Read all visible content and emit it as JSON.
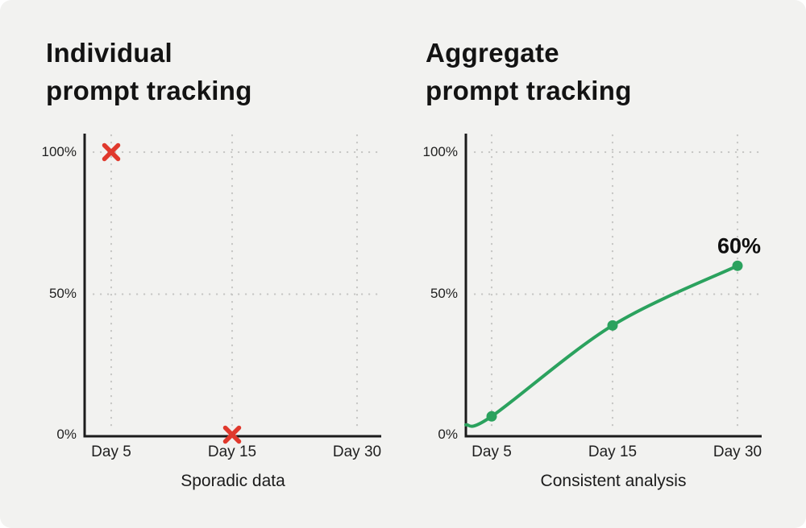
{
  "colors": {
    "background": "#f2f2f0",
    "axis": "#1b1b1b",
    "grid": "#c6c6c4",
    "red_marker": "#e0392d",
    "green_line": "#2ba25e",
    "text": "#161616"
  },
  "chart_data": [
    {
      "type": "scatter",
      "title": "Individual prompt tracking",
      "title_lines": [
        "Individual",
        "prompt tracking"
      ],
      "caption": "Sporadic data",
      "x_ticks": [
        "Day 5",
        "Day 15",
        "Day 30"
      ],
      "y_ticks": [
        "0%",
        "50%",
        "100%"
      ],
      "ylim": [
        0,
        100
      ],
      "grid": true,
      "marker": "x",
      "marker_color": "#e0392d",
      "points": [
        {
          "x": "Day 5",
          "y": 100
        },
        {
          "x": "Day 15",
          "y": 0
        }
      ]
    },
    {
      "type": "line",
      "title": "Aggregate prompt tracking",
      "title_lines": [
        "Aggregate",
        "prompt tracking"
      ],
      "caption": "Consistent analysis",
      "x_ticks": [
        "Day 5",
        "Day 15",
        "Day 30"
      ],
      "y_ticks": [
        "0%",
        "50%",
        "100%"
      ],
      "ylim": [
        0,
        100
      ],
      "grid": true,
      "line_color": "#2ba25e",
      "start": {
        "y": 4
      },
      "points": [
        {
          "x": "Day 5",
          "y": 7
        },
        {
          "x": "Day 15",
          "y": 39
        },
        {
          "x": "Day 30",
          "y": 60
        }
      ],
      "annotation": {
        "text": "60%",
        "at": "Day 30",
        "y": 60
      }
    }
  ]
}
